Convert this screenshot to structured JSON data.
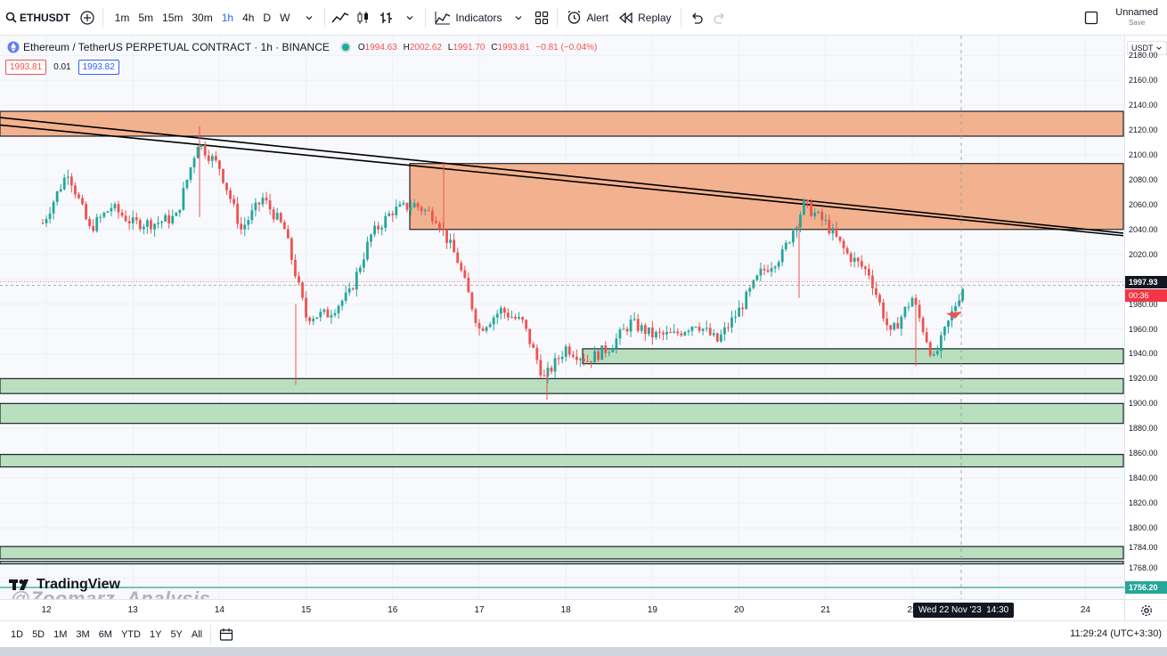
{
  "toolbar": {
    "symbol": "ETHUSDT",
    "timeframes": [
      "1m",
      "5m",
      "15m",
      "30m",
      "1h",
      "4h",
      "D",
      "W"
    ],
    "active_timeframe": "1h",
    "indicators_label": "Indicators",
    "alert_label": "Alert",
    "replay_label": "Replay",
    "layout_name": "Unnamed",
    "layout_status": "Save"
  },
  "legend": {
    "title": "Ethereum / TetherUS PERPETUAL CONTRACT · 1h · BINANCE",
    "o_label": "O",
    "o_value": "1994.63",
    "h_label": "H",
    "h_value": "2002.62",
    "l_label": "L",
    "l_value": "1991.70",
    "c_label": "C",
    "c_value": "1993.81",
    "change": "−0.81 (−0.04%)",
    "sell_price": "1993.81",
    "spread": "0.01",
    "buy_price": "1993.82"
  },
  "price_axis": {
    "currency": "USDT",
    "ticks": [
      "2180.00",
      "2160.00",
      "2140.00",
      "2120.00",
      "2100.00",
      "2080.00",
      "2060.00",
      "2040.00",
      "2020.00",
      "1980.00",
      "1960.00",
      "1940.00",
      "1920.00",
      "1900.00",
      "1880.00",
      "1860.00",
      "1840.00",
      "1820.00",
      "1800.00",
      "1784.00",
      "1768.00"
    ],
    "last_price": "1997.93",
    "countdown": "00:36",
    "cursor_price": "1756.20"
  },
  "time_axis": {
    "labels": [
      "12",
      "13",
      "14",
      "15",
      "16",
      "17",
      "18",
      "19",
      "20",
      "21",
      "22",
      "24"
    ],
    "cursor_label": "Wed 22 Nov '23",
    "cursor_time": "14:30"
  },
  "bottom": {
    "ranges": [
      "1D",
      "5D",
      "1M",
      "3M",
      "6M",
      "YTD",
      "1Y",
      "5Y",
      "All"
    ],
    "clock": "11:29:24 (UTC+3:30)"
  },
  "branding": {
    "tv_logo": "TradingView",
    "watermark": "@Zoomarz_Analysis"
  },
  "colors": {
    "up": "#26a69a",
    "down": "#ef5350",
    "supply_zone": "#f2b28f",
    "demand_zone": "#b9dfbf",
    "accent": "#2962ff"
  },
  "chart_data": {
    "type": "candlestick",
    "y_range": [
      1748,
      2188
    ],
    "zones": [
      {
        "kind": "supply",
        "low": 2115,
        "high": 2135
      },
      {
        "kind": "supply",
        "low": 2040,
        "high": 2093
      },
      {
        "kind": "demand",
        "low": 1932,
        "high": 1944
      },
      {
        "kind": "demand",
        "low": 1908,
        "high": 1920
      },
      {
        "kind": "demand",
        "low": 1884,
        "high": 1900
      },
      {
        "kind": "demand",
        "low": 1849,
        "high": 1859
      },
      {
        "kind": "demand",
        "low": 1775,
        "high": 1785
      },
      {
        "kind": "demand",
        "low": 1771,
        "high": 1773
      }
    ],
    "trendlines": [
      {
        "from": [
          "12 Nov",
          2130
        ],
        "to": [
          "23 Nov",
          2037
        ]
      },
      {
        "from": [
          "12 Nov",
          2124
        ],
        "to": [
          "23 Nov",
          2035
        ]
      }
    ],
    "price_path": [
      [
        "11 Nov 23:00",
        2045
      ],
      [
        "12 Nov 06:00",
        2087
      ],
      [
        "12 Nov 12:00",
        2040
      ],
      [
        "12 Nov 18:00",
        2058
      ],
      [
        "13 Nov 00:00",
        2045
      ],
      [
        "13 Nov 06:00",
        2045
      ],
      [
        "13 Nov 12:00",
        2050
      ],
      [
        "13 Nov 18:00",
        2110
      ],
      [
        "14 Nov 00:00",
        2090
      ],
      [
        "14 Nov 06:00",
        2040
      ],
      [
        "14 Nov 12:00",
        2065
      ],
      [
        "14 Nov 18:00",
        2040
      ],
      [
        "15 Nov 00:00",
        1970
      ],
      [
        "15 Nov 06:00",
        1972
      ],
      [
        "15 Nov 12:00",
        1988
      ],
      [
        "15 Nov 18:00",
        2035
      ],
      [
        "16 Nov 00:00",
        2055
      ],
      [
        "16 Nov 06:00",
        2060
      ],
      [
        "16 Nov 12:00",
        2050
      ],
      [
        "16 Nov 18:00",
        2015
      ],
      [
        "17 Nov 00:00",
        1960
      ],
      [
        "17 Nov 06:00",
        1975
      ],
      [
        "17 Nov 12:00",
        1965
      ],
      [
        "17 Nov 18:00",
        1920
      ],
      [
        "18 Nov 00:00",
        1945
      ],
      [
        "18 Nov 06:00",
        1935
      ],
      [
        "18 Nov 12:00",
        1945
      ],
      [
        "18 Nov 18:00",
        1965
      ],
      [
        "19 Nov 00:00",
        1955
      ],
      [
        "19 Nov 06:00",
        1955
      ],
      [
        "19 Nov 12:00",
        1965
      ],
      [
        "19 Nov 18:00",
        1950
      ],
      [
        "20 Nov 00:00",
        1975
      ],
      [
        "20 Nov 06:00",
        2005
      ],
      [
        "20 Nov 12:00",
        2020
      ],
      [
        "20 Nov 18:00",
        2060
      ],
      [
        "21 Nov 00:00",
        2045
      ],
      [
        "21 Nov 06:00",
        2020
      ],
      [
        "21 Nov 12:00",
        2005
      ],
      [
        "21 Nov 18:00",
        1955
      ],
      [
        "22 Nov 00:00",
        1985
      ],
      [
        "22 Nov 06:00",
        1935
      ],
      [
        "22 Nov 12:00",
        1980
      ],
      [
        "22 Nov 14:30",
        1997
      ]
    ]
  }
}
